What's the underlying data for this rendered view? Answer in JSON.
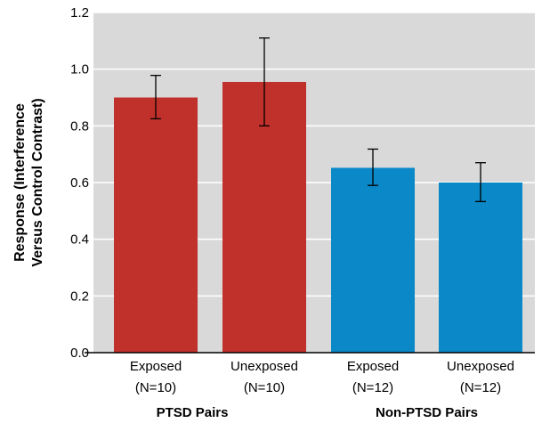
{
  "chart_data": {
    "type": "bar",
    "title": "",
    "ylabel_lines": [
      "Response (Interference",
      "Versus Control Contrast)"
    ],
    "ylim": [
      0,
      1.2
    ],
    "yticks": [
      "0.0",
      "0.2",
      "0.4",
      "0.6",
      "0.8",
      "1.0",
      "1.2"
    ],
    "grid": true,
    "bars": [
      {
        "label": "Exposed",
        "n": "(N=10)",
        "value": 0.9,
        "err_low": 0.825,
        "err_high": 0.978,
        "group": 0
      },
      {
        "label": "Unexposed",
        "n": "(N=10)",
        "value": 0.955,
        "err_low": 0.8,
        "err_high": 1.11,
        "group": 0
      },
      {
        "label": "Exposed",
        "n": "(N=12)",
        "value": 0.652,
        "err_low": 0.59,
        "err_high": 0.718,
        "group": 1
      },
      {
        "label": "Unexposed",
        "n": "(N=12)",
        "value": 0.6,
        "err_low": 0.533,
        "err_high": 0.67,
        "group": 1
      }
    ],
    "groups": [
      {
        "label": "PTSD Pairs",
        "color": "#c0312b"
      },
      {
        "label": "Non-PTSD Pairs",
        "color": "#0a88c8"
      }
    ],
    "plot_background": "#d9d9d9",
    "grid_color": "#ffffff"
  }
}
